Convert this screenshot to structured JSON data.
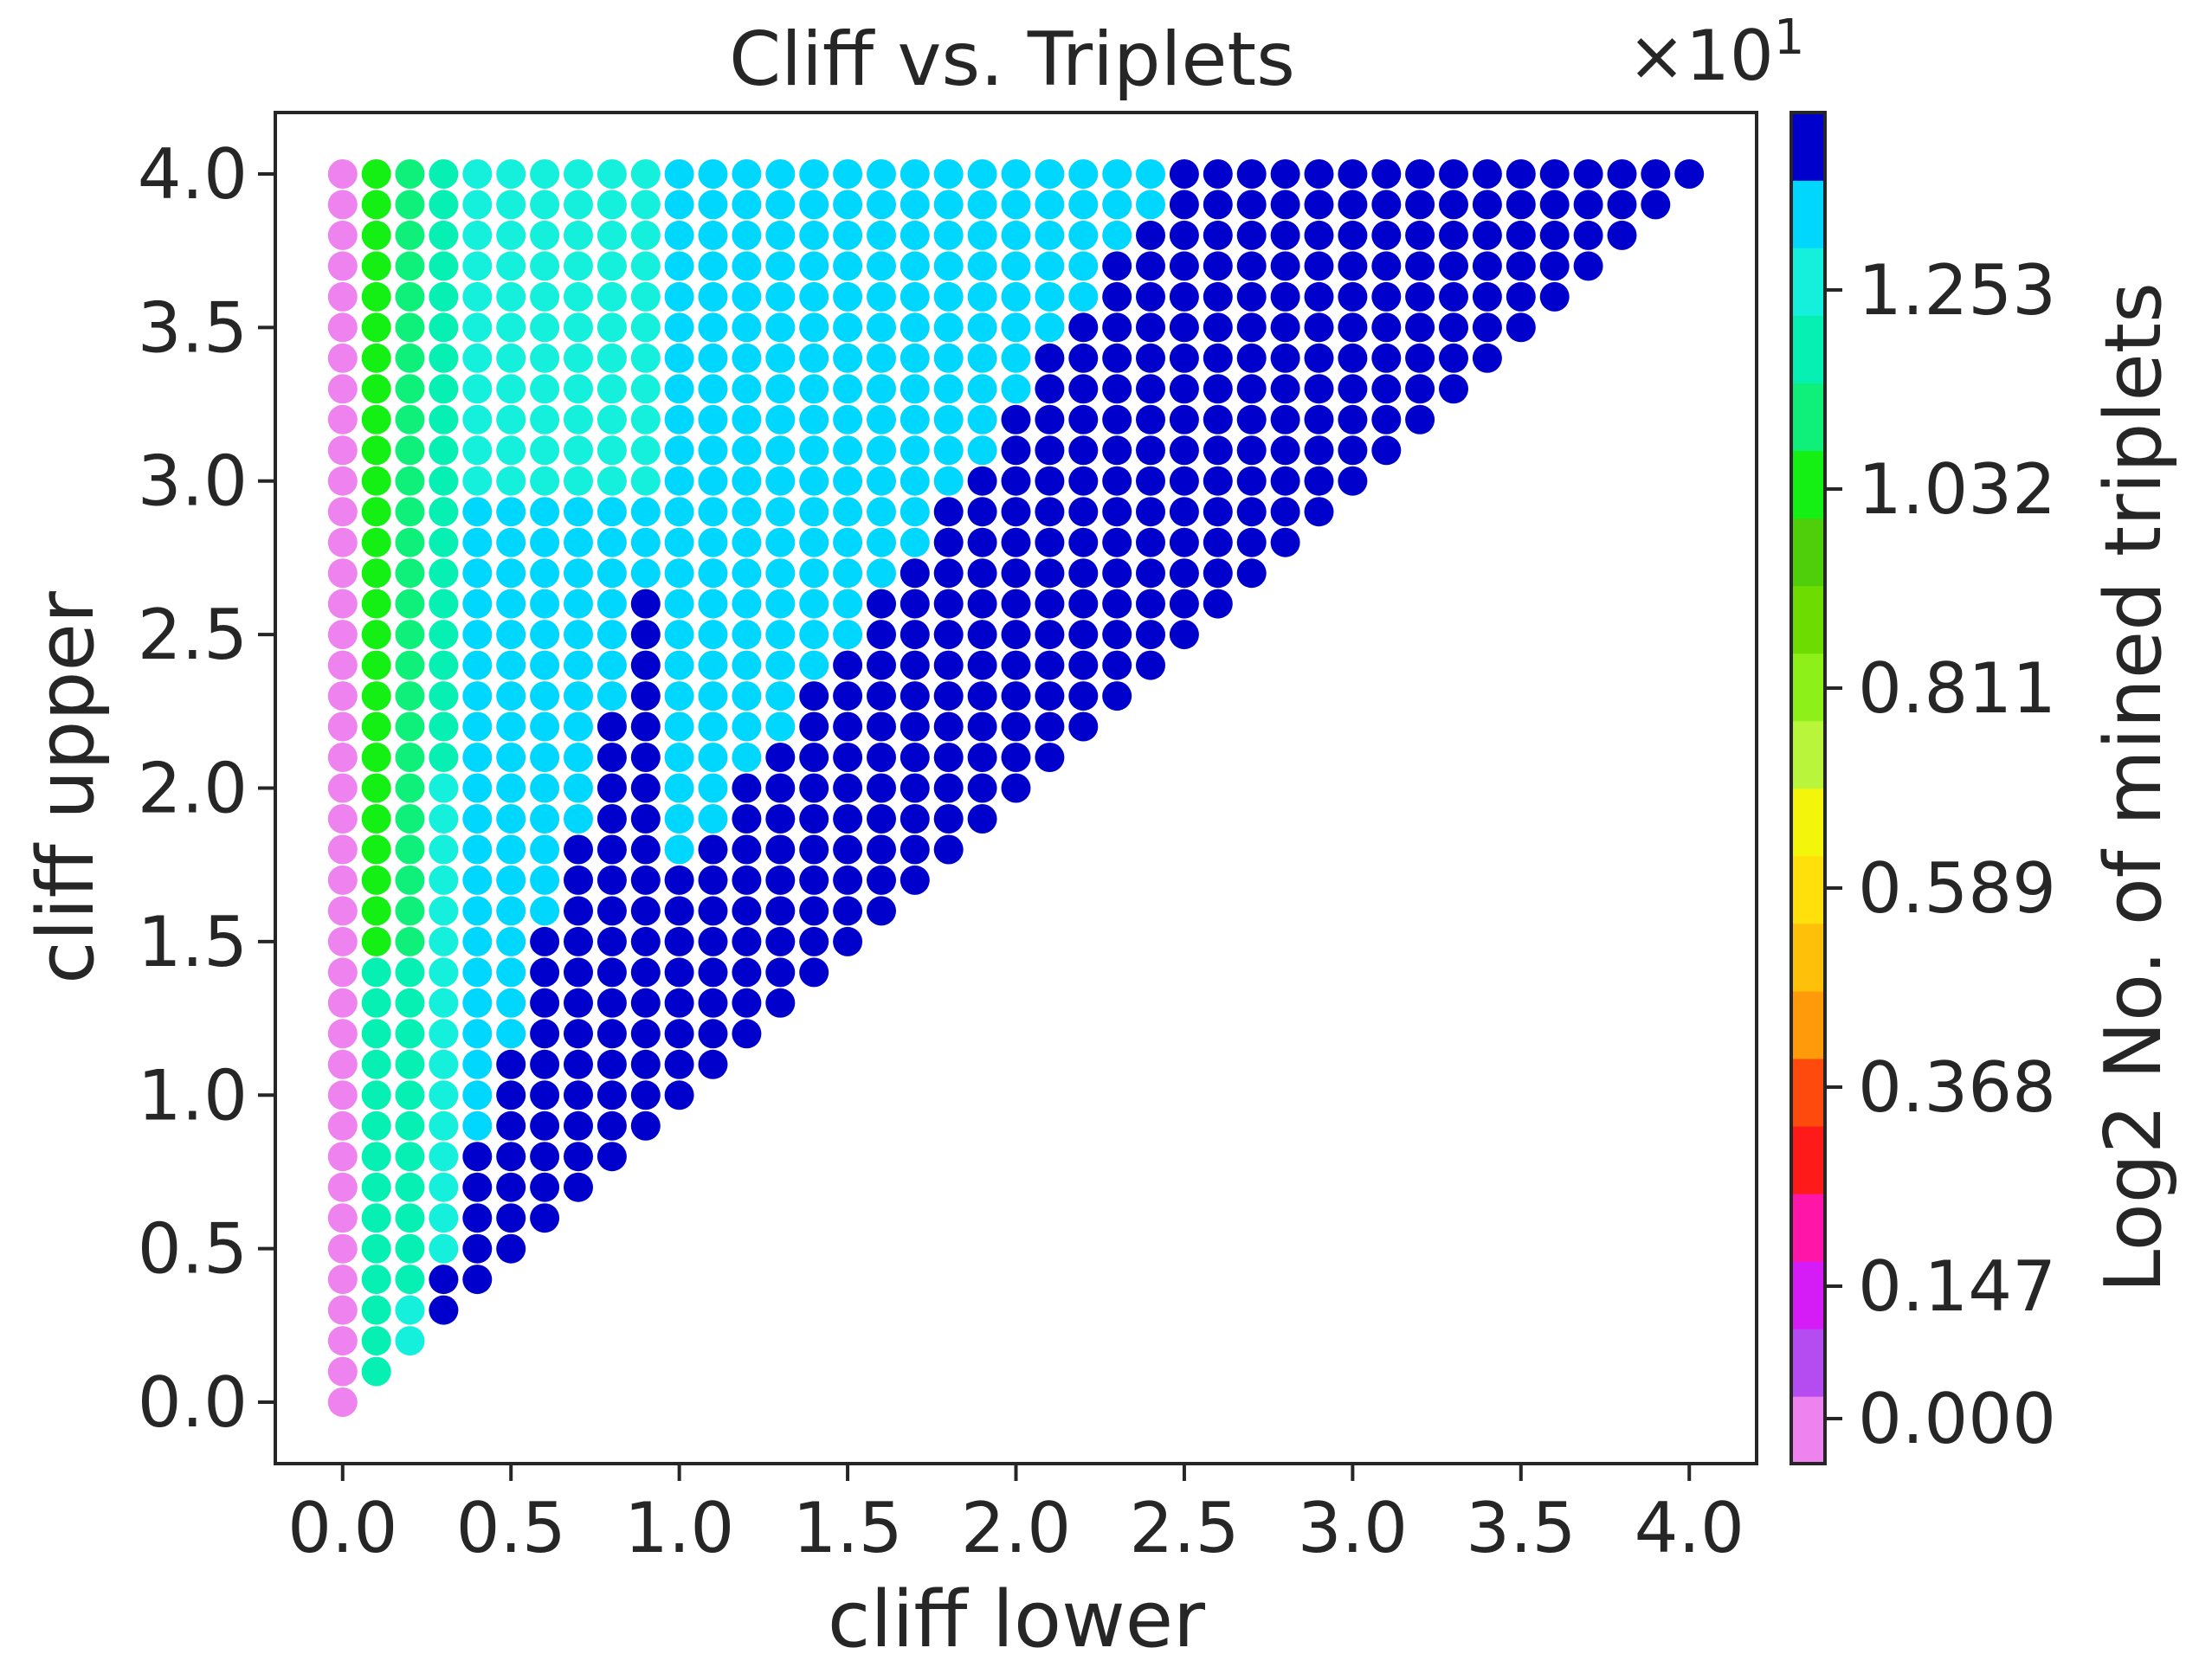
{
  "chart_data": {
    "type": "scatter",
    "title": "Cliff vs. Triplets",
    "xlabel": "cliff lower",
    "ylabel": "cliff upper",
    "xlim": [
      -0.2,
      4.2
    ],
    "ylim": [
      -0.2,
      4.2
    ],
    "xticks": [
      "0.0",
      "0.5",
      "1.0",
      "1.5",
      "2.0",
      "2.5",
      "3.0",
      "3.5",
      "4.0"
    ],
    "yticks": [
      "0.0",
      "0.5",
      "1.0",
      "1.5",
      "2.0",
      "2.5",
      "3.0",
      "3.5",
      "4.0"
    ],
    "grid_step": 0.1,
    "points_rule": "one point for every cliff lower x and cliff upper y on a 0.1 grid with 0 <= x <= y <= 4.0; value = log2 of mined triplets (colorbar units, x10^1)",
    "colorbar": {
      "label": "Log2 No. of mined triplets",
      "exponent_label": "×10",
      "exponent_power": "1",
      "range": [
        -0.05,
        1.45
      ],
      "ticks": [
        "0.000",
        "0.147",
        "0.368",
        "0.589",
        "0.811",
        "1.032",
        "1.253"
      ],
      "tick_values": [
        0.0,
        0.147,
        0.368,
        0.589,
        0.811,
        1.032,
        1.253
      ],
      "colors": [
        "#ee82ee",
        "#b44cf2",
        "#d61cf6",
        "#ff15a8",
        "#ff1a1a",
        "#ff4a0e",
        "#ff9a0a",
        "#ffc00a",
        "#ffe00a",
        "#f3f60a",
        "#b9f63b",
        "#8ef019",
        "#6ddc00",
        "#4fcf0a",
        "#14f014",
        "#0ef07a",
        "#06f0b4",
        "#14f0dc",
        "#00d7ff",
        "#0000cd"
      ]
    },
    "value_bands": {
      "x_zero_row": 0.0,
      "x_0.1_column": {
        "y_0.1_to_1.4": 1.19,
        "y_1.4_to_4.0": 1.06
      },
      "x_0.2_column": {
        "y_0.2_to_0.3": 1.29,
        "y_0.3_to_1.4": 1.19,
        "y_1.4_to_4.0": 1.1
      },
      "x_0.3_column": {
        "y_0.3_to_0.4": 1.44,
        "y_0.4_to_2.0": 1.29,
        "y_2.0_to_4.0": 1.16
      },
      "x_0.4_to_x_0.9": {
        "near_diagonal": 1.44,
        "lower_band": 1.34,
        "upper_band": 1.24
      },
      "x_1.0_and_up": {
        "near_diagonal": 1.44,
        "above_boundary": 1.34
      },
      "diagonal_boundary_note": "points below roughly y = x + 0.8 toward high x are the dark blue top-of-scale color"
    }
  }
}
